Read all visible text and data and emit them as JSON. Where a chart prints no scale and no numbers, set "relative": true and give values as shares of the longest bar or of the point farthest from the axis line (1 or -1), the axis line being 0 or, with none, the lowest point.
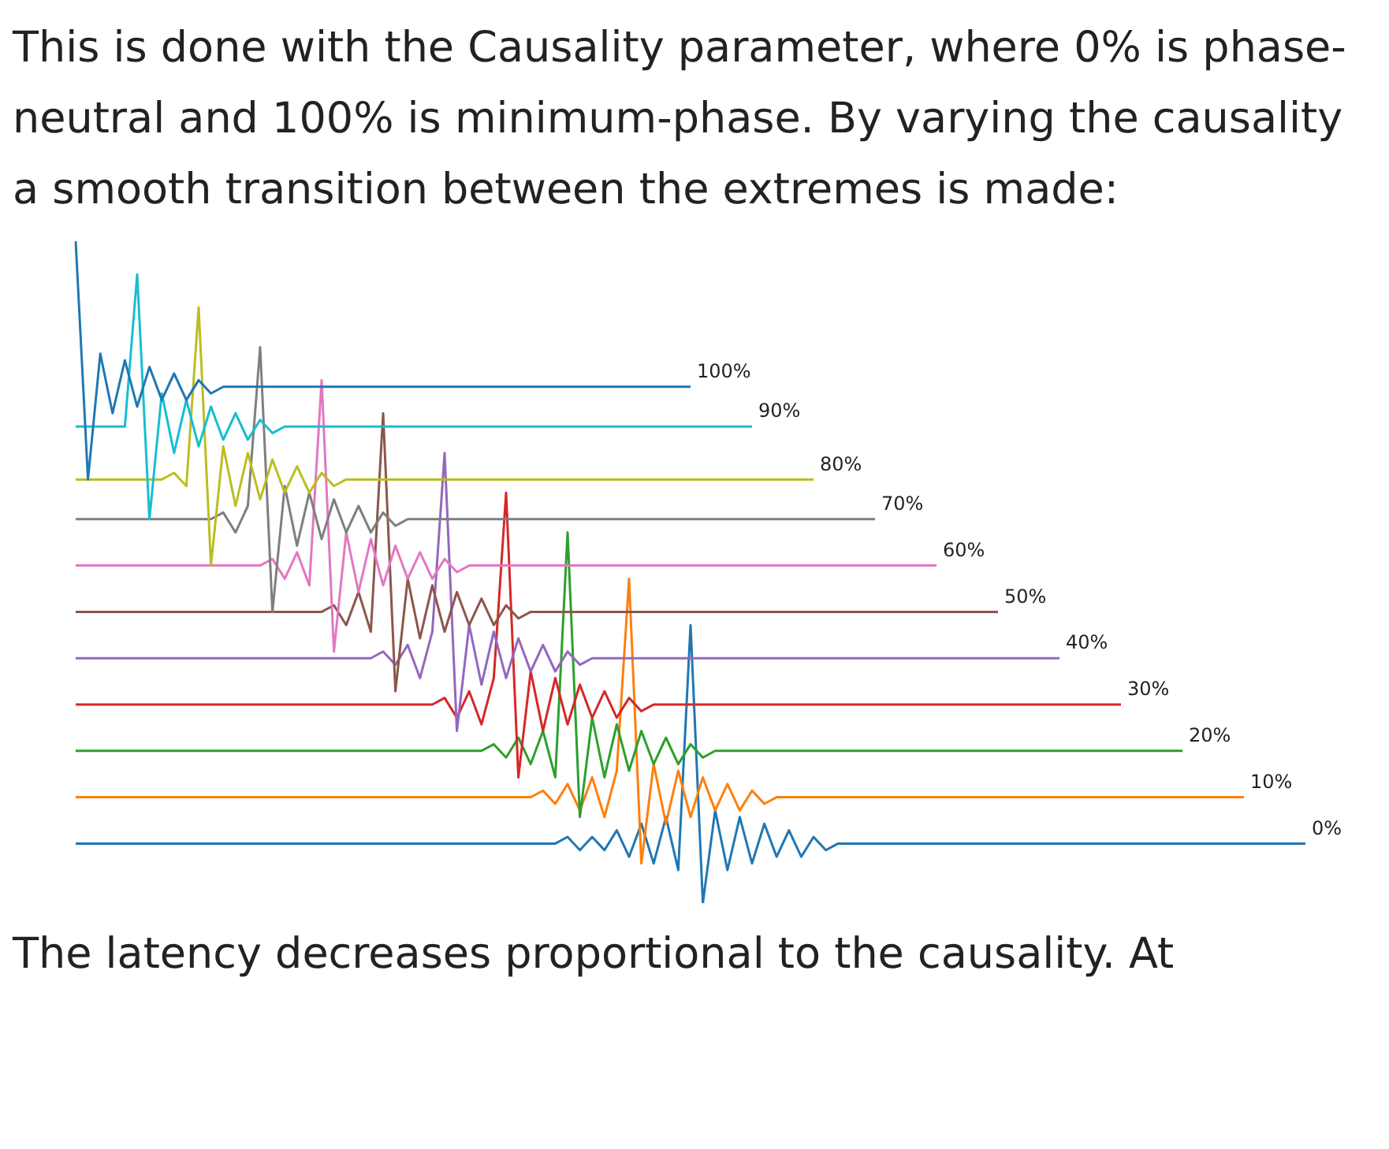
{
  "chart_data": {
    "type": "line",
    "relative": true,
    "legend": false,
    "annotations": [
      "This is done with the Causality parameter, where 0% is phase-neutral and 100% is minimum-phase. By varying the causality a smooth transition between the extremes is made:",
      "The latency decreases proportional to the causality. At"
    ],
    "categories": [
      null,
      null,
      null,
      null,
      null,
      null,
      null,
      null,
      null,
      null,
      null,
      null,
      null,
      null,
      null,
      null,
      null,
      null,
      null,
      null,
      null,
      null,
      null,
      null,
      null,
      null,
      null,
      null,
      null,
      null,
      null,
      null,
      null,
      null,
      null,
      null,
      null,
      null,
      null,
      null,
      null,
      null,
      null,
      null,
      null,
      null,
      null,
      null,
      null,
      null,
      null,
      null,
      null,
      null,
      null,
      null,
      null,
      null,
      null,
      null,
      null,
      null,
      null,
      null,
      null,
      null,
      null,
      null,
      null,
      null,
      null,
      null,
      null,
      null,
      null,
      null,
      null,
      null,
      null,
      null,
      null,
      null,
      null,
      null,
      null,
      null,
      null,
      null,
      null,
      null,
      null,
      null,
      null,
      null,
      null,
      null,
      null,
      null,
      null,
      null,
      null
    ],
    "series": [
      {
        "name": "100%",
        "color": "#1f77b4",
        "values": [
          1.0,
          0.64,
          0.83,
          0.74,
          0.82,
          0.75,
          0.81,
          0.76,
          0.8,
          0.76,
          0.79,
          0.77,
          0.78,
          0.78,
          0.78,
          0.78,
          0.78,
          0.78,
          0.78,
          0.78,
          0.78,
          0.78,
          0.78,
          0.78,
          0.78,
          0.78,
          0.78,
          0.78,
          0.78,
          0.78,
          0.78,
          0.78,
          0.78,
          0.78,
          0.78,
          0.78,
          0.78,
          0.78,
          0.78,
          0.78,
          0.78,
          0.78,
          0.78,
          0.78,
          0.78,
          0.78,
          0.78,
          0.78,
          0.78,
          0.78,
          0.78,
          null,
          null,
          null,
          null,
          null,
          null,
          null,
          null,
          null,
          null,
          null,
          null,
          null,
          null,
          null,
          null,
          null,
          null,
          null,
          null,
          null,
          null,
          null,
          null,
          null,
          null,
          null,
          null,
          null,
          null,
          null,
          null,
          null,
          null,
          null,
          null,
          null,
          null,
          null,
          null,
          null,
          null,
          null,
          null,
          null,
          null,
          null,
          null,
          null,
          null
        ]
      },
      {
        "name": "90%",
        "color": "#17becf",
        "values": [
          0.72,
          0.72,
          0.72,
          0.72,
          0.72,
          0.95,
          0.58,
          0.77,
          0.68,
          0.76,
          0.69,
          0.75,
          0.7,
          0.74,
          0.7,
          0.73,
          0.71,
          0.72,
          0.72,
          0.72,
          0.72,
          0.72,
          0.72,
          0.72,
          0.72,
          0.72,
          0.72,
          0.72,
          0.72,
          0.72,
          0.72,
          0.72,
          0.72,
          0.72,
          0.72,
          0.72,
          0.72,
          0.72,
          0.72,
          0.72,
          0.72,
          0.72,
          0.72,
          0.72,
          0.72,
          0.72,
          0.72,
          0.72,
          0.72,
          0.72,
          0.72,
          0.72,
          0.72,
          0.72,
          0.72,
          0.72,
          null,
          null,
          null,
          null,
          null,
          null,
          null,
          null,
          null,
          null,
          null,
          null,
          null,
          null,
          null,
          null,
          null,
          null,
          null,
          null,
          null,
          null,
          null,
          null,
          null,
          null,
          null,
          null,
          null,
          null,
          null,
          null,
          null,
          null,
          null,
          null,
          null,
          null,
          null,
          null,
          null,
          null,
          null,
          null,
          null
        ]
      },
      {
        "name": "80%",
        "color": "#bcbd22",
        "values": [
          0.64,
          0.64,
          0.64,
          0.64,
          0.64,
          0.64,
          0.64,
          0.64,
          0.65,
          0.63,
          0.9,
          0.51,
          0.69,
          0.6,
          0.68,
          0.61,
          0.67,
          0.62,
          0.66,
          0.62,
          0.65,
          0.63,
          0.64,
          0.64,
          0.64,
          0.64,
          0.64,
          0.64,
          0.64,
          0.64,
          0.64,
          0.64,
          0.64,
          0.64,
          0.64,
          0.64,
          0.64,
          0.64,
          0.64,
          0.64,
          0.64,
          0.64,
          0.64,
          0.64,
          0.64,
          0.64,
          0.64,
          0.64,
          0.64,
          0.64,
          0.64,
          0.64,
          0.64,
          0.64,
          0.64,
          0.64,
          0.64,
          0.64,
          0.64,
          0.64,
          0.64,
          null,
          null,
          null,
          null,
          null,
          null,
          null,
          null,
          null,
          null,
          null,
          null,
          null,
          null,
          null,
          null,
          null,
          null,
          null,
          null,
          null,
          null,
          null,
          null,
          null,
          null,
          null,
          null,
          null,
          null,
          null,
          null,
          null,
          null,
          null,
          null,
          null,
          null,
          null,
          null
        ]
      },
      {
        "name": "70%",
        "color": "#7f7f7f",
        "values": [
          0.58,
          0.58,
          0.58,
          0.58,
          0.58,
          0.58,
          0.58,
          0.58,
          0.58,
          0.58,
          0.58,
          0.58,
          0.59,
          0.56,
          0.6,
          0.84,
          0.44,
          0.63,
          0.54,
          0.62,
          0.55,
          0.61,
          0.56,
          0.6,
          0.56,
          0.59,
          0.57,
          0.58,
          0.58,
          0.58,
          0.58,
          0.58,
          0.58,
          0.58,
          0.58,
          0.58,
          0.58,
          0.58,
          0.58,
          0.58,
          0.58,
          0.58,
          0.58,
          0.58,
          0.58,
          0.58,
          0.58,
          0.58,
          0.58,
          0.58,
          0.58,
          0.58,
          0.58,
          0.58,
          0.58,
          0.58,
          0.58,
          0.58,
          0.58,
          0.58,
          0.58,
          0.58,
          0.58,
          0.58,
          0.58,
          0.58,
          null,
          null,
          null,
          null,
          null,
          null,
          null,
          null,
          null,
          null,
          null,
          null,
          null,
          null,
          null,
          null,
          null,
          null,
          null,
          null,
          null,
          null,
          null,
          null,
          null,
          null,
          null,
          null,
          null,
          null,
          null,
          null,
          null,
          null,
          null
        ]
      },
      {
        "name": "60%",
        "color": "#e377c2",
        "values": [
          0.51,
          0.51,
          0.51,
          0.51,
          0.51,
          0.51,
          0.51,
          0.51,
          0.51,
          0.51,
          0.51,
          0.51,
          0.51,
          0.51,
          0.51,
          0.51,
          0.52,
          0.49,
          0.53,
          0.48,
          0.79,
          0.38,
          0.56,
          0.47,
          0.55,
          0.48,
          0.54,
          0.49,
          0.53,
          0.49,
          0.52,
          0.5,
          0.51,
          0.51,
          0.51,
          0.51,
          0.51,
          0.51,
          0.51,
          0.51,
          0.51,
          0.51,
          0.51,
          0.51,
          0.51,
          0.51,
          0.51,
          0.51,
          0.51,
          0.51,
          0.51,
          0.51,
          0.51,
          0.51,
          0.51,
          0.51,
          0.51,
          0.51,
          0.51,
          0.51,
          0.51,
          0.51,
          0.51,
          0.51,
          0.51,
          0.51,
          0.51,
          0.51,
          0.51,
          0.51,
          0.51,
          null,
          null,
          null,
          null,
          null,
          null,
          null,
          null,
          null,
          null,
          null,
          null,
          null,
          null,
          null,
          null,
          null,
          null,
          null,
          null,
          null,
          null,
          null,
          null,
          null,
          null,
          null,
          null,
          null,
          null
        ]
      },
      {
        "name": "50%",
        "color": "#8c564b",
        "values": [
          0.44,
          0.44,
          0.44,
          0.44,
          0.44,
          0.44,
          0.44,
          0.44,
          0.44,
          0.44,
          0.44,
          0.44,
          0.44,
          0.44,
          0.44,
          0.44,
          0.44,
          0.44,
          0.44,
          0.44,
          0.44,
          0.45,
          0.42,
          0.47,
          0.41,
          0.74,
          0.32,
          0.49,
          0.4,
          0.48,
          0.41,
          0.47,
          0.42,
          0.46,
          0.42,
          0.45,
          0.43,
          0.44,
          0.44,
          0.44,
          0.44,
          0.44,
          0.44,
          0.44,
          0.44,
          0.44,
          0.44,
          0.44,
          0.44,
          0.44,
          0.44,
          0.44,
          0.44,
          0.44,
          0.44,
          0.44,
          0.44,
          0.44,
          0.44,
          0.44,
          0.44,
          0.44,
          0.44,
          0.44,
          0.44,
          0.44,
          0.44,
          0.44,
          0.44,
          0.44,
          0.44,
          0.44,
          0.44,
          0.44,
          0.44,
          0.44,
          null,
          null,
          null,
          null,
          null,
          null,
          null,
          null,
          null,
          null,
          null,
          null,
          null,
          null,
          null,
          null,
          null,
          null,
          null,
          null,
          null,
          null,
          null,
          null,
          null
        ]
      },
      {
        "name": "40%",
        "color": "#9467bd",
        "values": [
          0.37,
          0.37,
          0.37,
          0.37,
          0.37,
          0.37,
          0.37,
          0.37,
          0.37,
          0.37,
          0.37,
          0.37,
          0.37,
          0.37,
          0.37,
          0.37,
          0.37,
          0.37,
          0.37,
          0.37,
          0.37,
          0.37,
          0.37,
          0.37,
          0.37,
          0.38,
          0.36,
          0.39,
          0.34,
          0.41,
          0.68,
          0.26,
          0.42,
          0.33,
          0.41,
          0.34,
          0.4,
          0.35,
          0.39,
          0.35,
          0.38,
          0.36,
          0.37,
          0.37,
          0.37,
          0.37,
          0.37,
          0.37,
          0.37,
          0.37,
          0.37,
          0.37,
          0.37,
          0.37,
          0.37,
          0.37,
          0.37,
          0.37,
          0.37,
          0.37,
          0.37,
          0.37,
          0.37,
          0.37,
          0.37,
          0.37,
          0.37,
          0.37,
          0.37,
          0.37,
          0.37,
          0.37,
          0.37,
          0.37,
          0.37,
          0.37,
          0.37,
          0.37,
          0.37,
          0.37,
          0.37,
          null,
          null,
          null,
          null,
          null,
          null,
          null,
          null,
          null,
          null,
          null,
          null,
          null,
          null,
          null,
          null,
          null,
          null,
          null,
          null
        ]
      },
      {
        "name": "30%",
        "color": "#d62728",
        "values": [
          0.3,
          0.3,
          0.3,
          0.3,
          0.3,
          0.3,
          0.3,
          0.3,
          0.3,
          0.3,
          0.3,
          0.3,
          0.3,
          0.3,
          0.3,
          0.3,
          0.3,
          0.3,
          0.3,
          0.3,
          0.3,
          0.3,
          0.3,
          0.3,
          0.3,
          0.3,
          0.3,
          0.3,
          0.3,
          0.3,
          0.31,
          0.28,
          0.32,
          0.27,
          0.34,
          0.62,
          0.19,
          0.35,
          0.26,
          0.34,
          0.27,
          0.33,
          0.28,
          0.32,
          0.28,
          0.31,
          0.29,
          0.3,
          0.3,
          0.3,
          0.3,
          0.3,
          0.3,
          0.3,
          0.3,
          0.3,
          0.3,
          0.3,
          0.3,
          0.3,
          0.3,
          0.3,
          0.3,
          0.3,
          0.3,
          0.3,
          0.3,
          0.3,
          0.3,
          0.3,
          0.3,
          0.3,
          0.3,
          0.3,
          0.3,
          0.3,
          0.3,
          0.3,
          0.3,
          0.3,
          0.3,
          0.3,
          0.3,
          0.3,
          0.3,
          0.3,
          null,
          null,
          null,
          null,
          null,
          null,
          null,
          null,
          null,
          null,
          null,
          null,
          null,
          null,
          null
        ]
      },
      {
        "name": "20%",
        "color": "#2ca02c",
        "values": [
          0.23,
          0.23,
          0.23,
          0.23,
          0.23,
          0.23,
          0.23,
          0.23,
          0.23,
          0.23,
          0.23,
          0.23,
          0.23,
          0.23,
          0.23,
          0.23,
          0.23,
          0.23,
          0.23,
          0.23,
          0.23,
          0.23,
          0.23,
          0.23,
          0.23,
          0.23,
          0.23,
          0.23,
          0.23,
          0.23,
          0.23,
          0.23,
          0.23,
          0.23,
          0.24,
          0.22,
          0.25,
          0.21,
          0.26,
          0.19,
          0.56,
          0.13,
          0.28,
          0.19,
          0.27,
          0.2,
          0.26,
          0.21,
          0.25,
          0.21,
          0.24,
          0.22,
          0.23,
          0.23,
          0.23,
          0.23,
          0.23,
          0.23,
          0.23,
          0.23,
          0.23,
          0.23,
          0.23,
          0.23,
          0.23,
          0.23,
          0.23,
          0.23,
          0.23,
          0.23,
          0.23,
          0.23,
          0.23,
          0.23,
          0.23,
          0.23,
          0.23,
          0.23,
          0.23,
          0.23,
          0.23,
          0.23,
          0.23,
          0.23,
          0.23,
          0.23,
          0.23,
          0.23,
          0.23,
          0.23,
          0.23,
          null,
          null,
          null,
          null,
          null,
          null,
          null,
          null,
          null,
          null
        ]
      },
      {
        "name": "10%",
        "color": "#ff7f0e",
        "values": [
          0.16,
          0.16,
          0.16,
          0.16,
          0.16,
          0.16,
          0.16,
          0.16,
          0.16,
          0.16,
          0.16,
          0.16,
          0.16,
          0.16,
          0.16,
          0.16,
          0.16,
          0.16,
          0.16,
          0.16,
          0.16,
          0.16,
          0.16,
          0.16,
          0.16,
          0.16,
          0.16,
          0.16,
          0.16,
          0.16,
          0.16,
          0.16,
          0.16,
          0.16,
          0.16,
          0.16,
          0.16,
          0.16,
          0.17,
          0.15,
          0.18,
          0.14,
          0.19,
          0.13,
          0.2,
          0.49,
          0.06,
          0.21,
          0.12,
          0.2,
          0.13,
          0.19,
          0.14,
          0.18,
          0.14,
          0.17,
          0.15,
          0.16,
          0.16,
          0.16,
          0.16,
          0.16,
          0.16,
          0.16,
          0.16,
          0.16,
          0.16,
          0.16,
          0.16,
          0.16,
          0.16,
          0.16,
          0.16,
          0.16,
          0.16,
          0.16,
          0.16,
          0.16,
          0.16,
          0.16,
          0.16,
          0.16,
          0.16,
          0.16,
          0.16,
          0.16,
          0.16,
          0.16,
          0.16,
          0.16,
          0.16,
          0.16,
          0.16,
          0.16,
          0.16,
          0.16,
          null,
          null,
          null,
          null,
          null
        ]
      },
      {
        "name": "0%",
        "color": "#1f77b4",
        "values": [
          0.09,
          0.09,
          0.09,
          0.09,
          0.09,
          0.09,
          0.09,
          0.09,
          0.09,
          0.09,
          0.09,
          0.09,
          0.09,
          0.09,
          0.09,
          0.09,
          0.09,
          0.09,
          0.09,
          0.09,
          0.09,
          0.09,
          0.09,
          0.09,
          0.09,
          0.09,
          0.09,
          0.09,
          0.09,
          0.09,
          0.09,
          0.09,
          0.09,
          0.09,
          0.09,
          0.09,
          0.09,
          0.09,
          0.09,
          0.09,
          0.1,
          0.08,
          0.1,
          0.08,
          0.11,
          0.07,
          0.12,
          0.06,
          0.13,
          0.05,
          0.42,
          0.0,
          0.14,
          0.05,
          0.13,
          0.06,
          0.12,
          0.07,
          0.11,
          0.07,
          0.1,
          0.08,
          0.09,
          0.09,
          0.09,
          0.09,
          0.09,
          0.09,
          0.09,
          0.09,
          0.09,
          0.09,
          0.09,
          0.09,
          0.09,
          0.09,
          0.09,
          0.09,
          0.09,
          0.09,
          0.09,
          0.09,
          0.09,
          0.09,
          0.09,
          0.09,
          0.09,
          0.09,
          0.09,
          0.09,
          0.09,
          0.09,
          0.09,
          0.09,
          0.09,
          0.09,
          0.09,
          0.09,
          0.09,
          0.09,
          0.09
        ]
      }
    ]
  }
}
